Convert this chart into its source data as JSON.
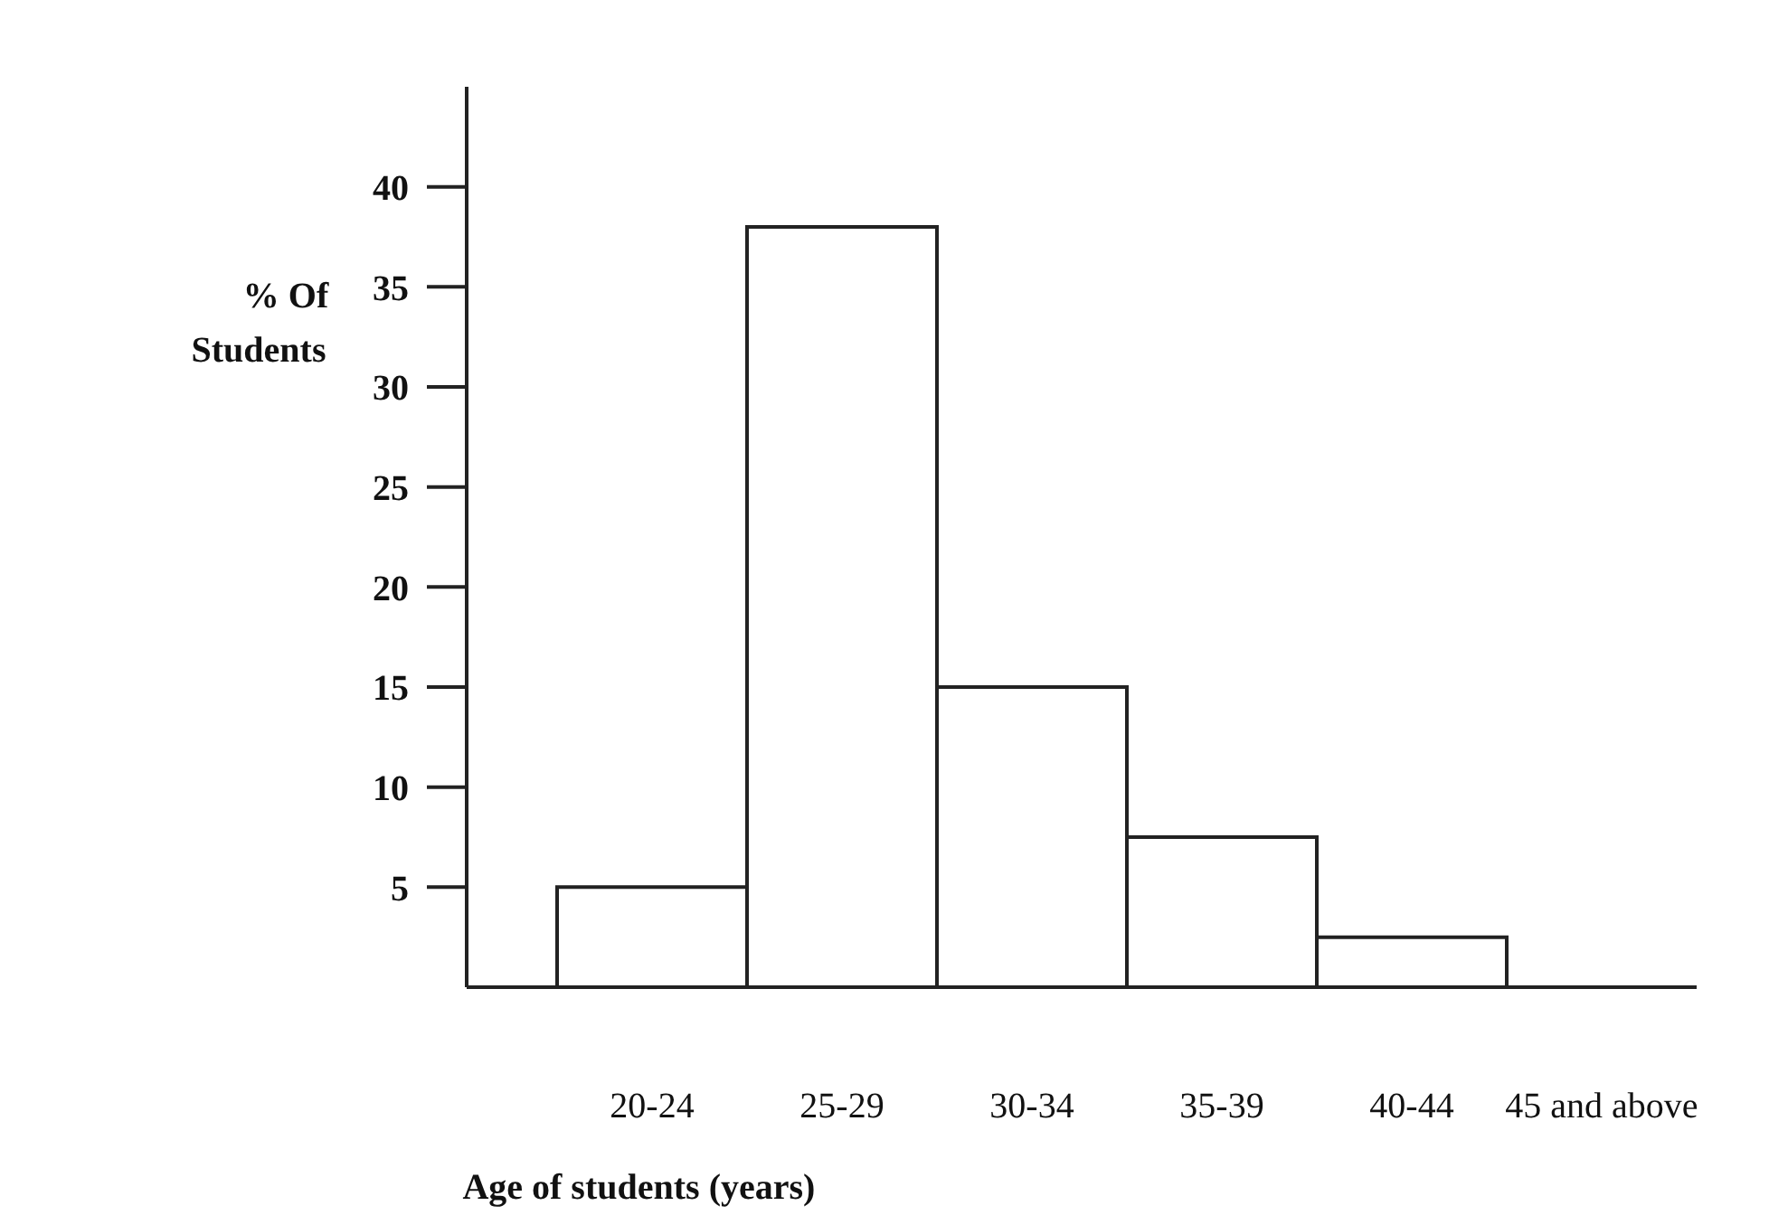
{
  "chart_data": {
    "type": "bar",
    "xlabel": "Age of students (years)",
    "ylabel": "% Of Students",
    "categories": [
      "20-24",
      "25-29",
      "30-34",
      "35-39",
      "40-44",
      "45 and above"
    ],
    "values": [
      5,
      38,
      15,
      7.5,
      2.5,
      0
    ],
    "color": "#ffffff",
    "ylim": [
      0,
      45
    ],
    "yticks": [
      5,
      10,
      15,
      20,
      25,
      30,
      35,
      40
    ],
    "grid": false,
    "legend": false
  }
}
